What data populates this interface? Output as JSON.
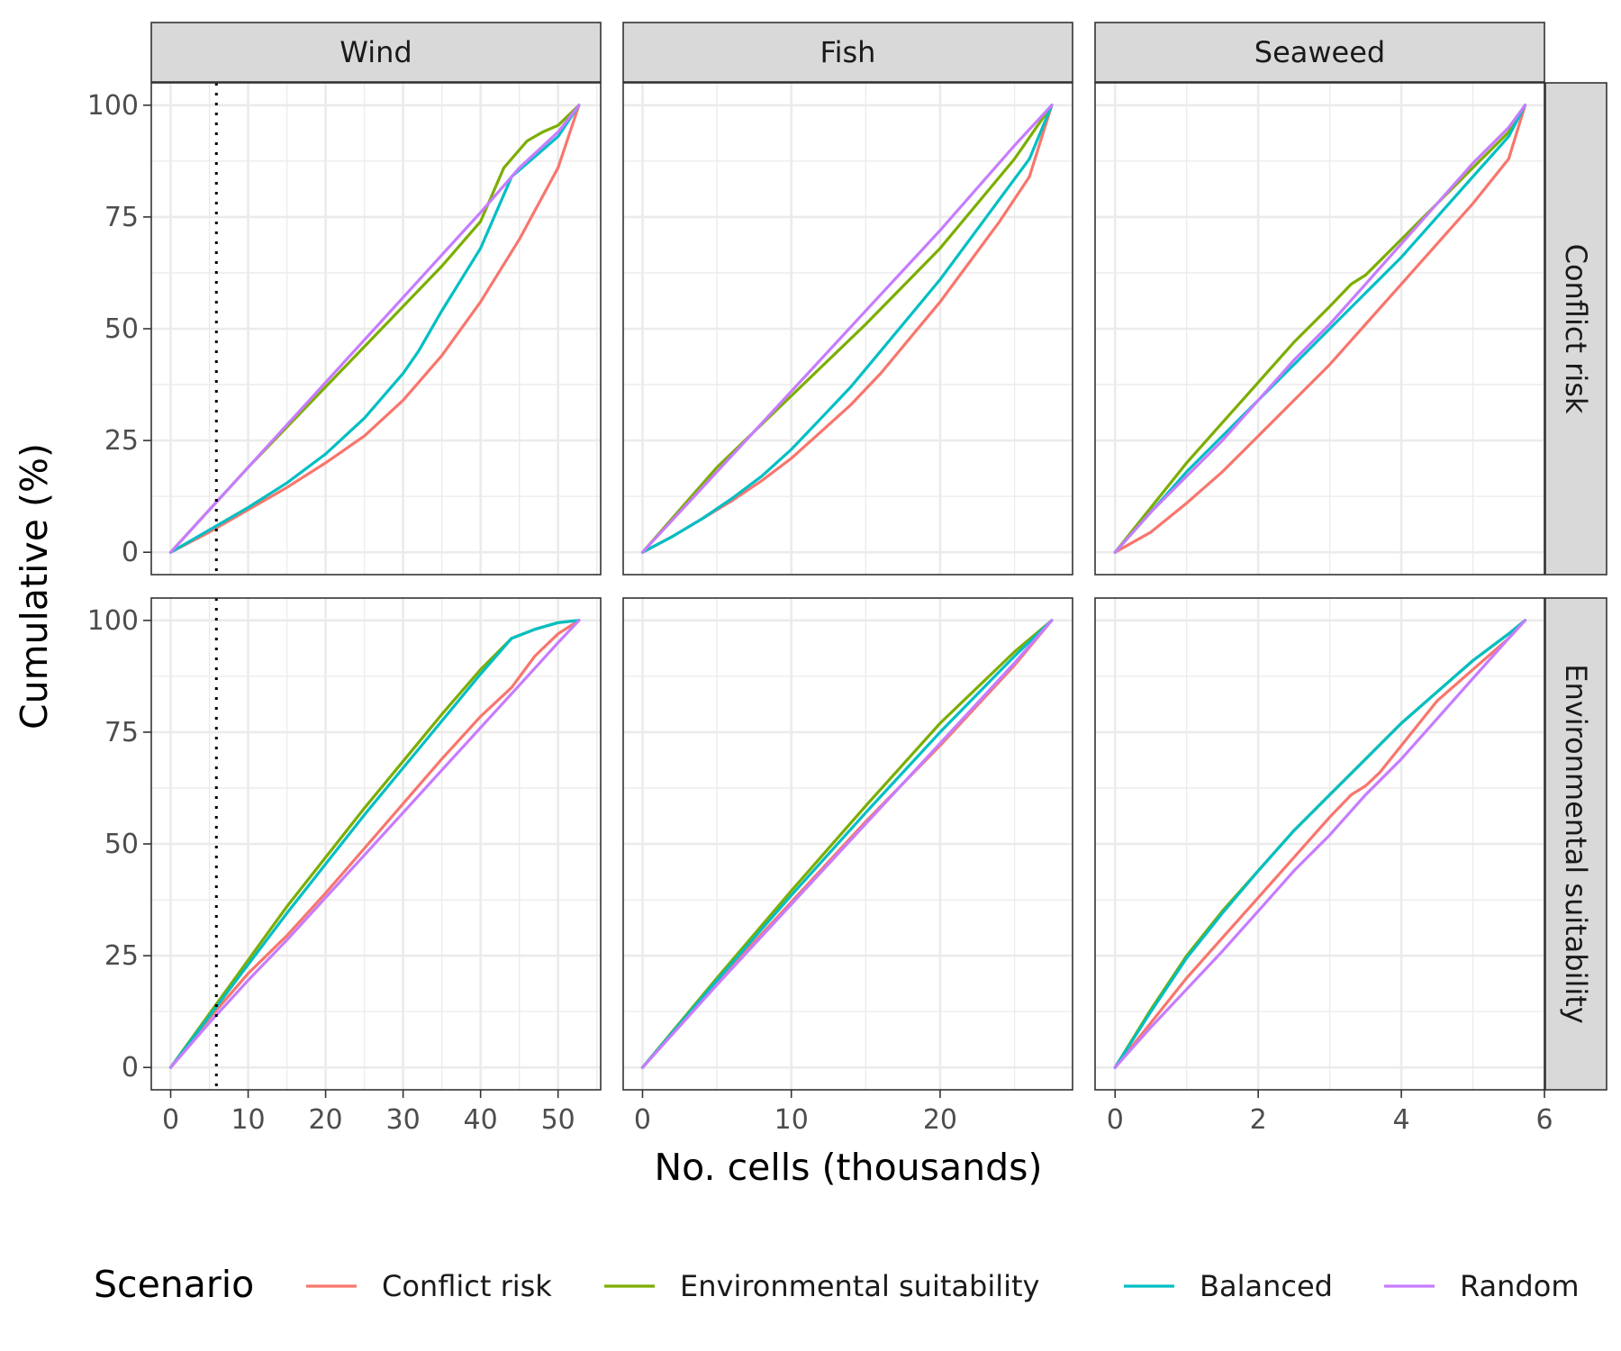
{
  "chart_data": {
    "type": "line",
    "xlabel": "No. cells (thousands)",
    "ylabel": "Cumulative (%)",
    "column_facets": [
      "Wind",
      "Fish",
      "Seaweed"
    ],
    "row_facets": [
      "Conflict risk",
      "Environmental suitability"
    ],
    "y_ticks": [
      "0",
      "25",
      "50",
      "75",
      "100"
    ],
    "ylim": [
      -5,
      105
    ],
    "x_axes": {
      "Wind": {
        "xlim": [
          -2.5,
          55.5
        ],
        "ticks": [
          0,
          10,
          20,
          30,
          40,
          50
        ],
        "max": 52.7
      },
      "Fish": {
        "xlim": [
          -1.3,
          28.9
        ],
        "ticks": [
          0,
          10,
          20
        ],
        "max": 27.5
      },
      "Seaweed": {
        "xlim": [
          -0.28,
          6.0
        ],
        "ticks": [
          0,
          2,
          4,
          6
        ],
        "max": 5.73
      }
    },
    "reference_line": {
      "panel_column": "Wind",
      "x": 5.9,
      "style": "dotted"
    },
    "legend": {
      "title": "Scenario",
      "position": "bottom",
      "entries": [
        {
          "name": "Conflict risk",
          "color": "#F8766D"
        },
        {
          "name": "Environmental suitability",
          "color": "#7CAE00"
        },
        {
          "name": "Balanced",
          "color": "#00BFC4"
        },
        {
          "name": "Random",
          "color": "#C77CFF"
        }
      ]
    },
    "panels": [
      {
        "row": "Conflict risk",
        "col": "Wind",
        "series": [
          {
            "name": "Conflict risk",
            "x": [
              0,
              5,
              10,
              15,
              20,
              25,
              30,
              35,
              40,
              45,
              50,
              52.7
            ],
            "y": [
              0,
              4.5,
              9.5,
              14.5,
              20,
              26,
              34,
              44,
              56,
              70,
              86,
              100
            ]
          },
          {
            "name": "Environmental suitability",
            "x": [
              0,
              5,
              10,
              15,
              20,
              25,
              30,
              35,
              40,
              43,
              46,
              48,
              50,
              52.7
            ],
            "y": [
              0,
              9.5,
              19,
              28,
              37,
              46,
              55,
              64,
              74,
              86,
              92,
              94,
              95.5,
              100
            ]
          },
          {
            "name": "Balanced",
            "x": [
              0,
              5,
              10,
              15,
              20,
              25,
              30,
              32,
              35,
              40,
              44,
              48,
              50,
              52.7
            ],
            "y": [
              0,
              5,
              10,
              15.5,
              22,
              30,
              40,
              45,
              54,
              68,
              84,
              90,
              93,
              100
            ]
          },
          {
            "name": "Random",
            "x": [
              0,
              5,
              10,
              15,
              20,
              25,
              30,
              35,
              40,
              45,
              50,
              52.7
            ],
            "y": [
              0,
              9.5,
              19,
              28.5,
              38,
              47.5,
              57,
              66.5,
              76,
              86,
              94,
              100
            ]
          }
        ]
      },
      {
        "row": "Conflict risk",
        "col": "Fish",
        "series": [
          {
            "name": "Conflict risk",
            "x": [
              0,
              2,
              4,
              6,
              8,
              10,
              12,
              14,
              16,
              18,
              20,
              22,
              24,
              26,
              27.5
            ],
            "y": [
              0,
              3.5,
              7.5,
              11.5,
              16,
              21,
              27,
              33,
              40,
              48,
              56,
              65,
              74,
              84,
              100
            ]
          },
          {
            "name": "Environmental suitability",
            "x": [
              0,
              5,
              10,
              15,
              20,
              25,
              27.5
            ],
            "y": [
              0,
              19,
              35,
              51,
              68,
              88,
              100
            ]
          },
          {
            "name": "Balanced",
            "x": [
              0,
              2,
              4,
              6,
              8,
              10,
              12,
              14,
              16,
              18,
              20,
              22,
              24,
              26,
              27.5
            ],
            "y": [
              0,
              3.5,
              7.5,
              12,
              17,
              23,
              30,
              37,
              45,
              53,
              61,
              70,
              79,
              88,
              100
            ]
          },
          {
            "name": "Random",
            "x": [
              0,
              5,
              10,
              15,
              20,
              25,
              27.5
            ],
            "y": [
              0,
              18,
              36,
              54,
              72,
              91,
              100
            ]
          }
        ]
      },
      {
        "row": "Conflict risk",
        "col": "Seaweed",
        "series": [
          {
            "name": "Conflict risk",
            "x": [
              0,
              0.5,
              1,
              1.5,
              2,
              2.5,
              3,
              3.5,
              4,
              4.5,
              5,
              5.5,
              5.73
            ],
            "y": [
              0,
              4.5,
              11,
              18,
              26,
              34,
              42,
              51,
              60,
              69,
              78,
              88,
              100
            ]
          },
          {
            "name": "Environmental suitability",
            "x": [
              0,
              0.5,
              1,
              1.5,
              2,
              2.5,
              3,
              3.3,
              3.5,
              4,
              4.5,
              5,
              5.5,
              5.73
            ],
            "y": [
              0,
              10,
              20,
              29,
              38,
              47,
              55,
              60,
              62,
              70,
              78,
              86,
              94,
              100
            ]
          },
          {
            "name": "Balanced",
            "x": [
              0,
              0.5,
              1,
              1.5,
              2,
              2.5,
              3,
              3.5,
              4,
              4.5,
              5,
              5.5,
              5.73
            ],
            "y": [
              0,
              9,
              18,
              26,
              34,
              42,
              50,
              58,
              66,
              75,
              84,
              93,
              100
            ]
          },
          {
            "name": "Random",
            "x": [
              0,
              0.5,
              1,
              1.5,
              2,
              2.5,
              3,
              3.5,
              4,
              4.5,
              5,
              5.5,
              5.73
            ],
            "y": [
              0,
              9,
              17,
              25,
              34,
              43,
              51,
              60,
              69,
              78,
              87,
              95,
              100
            ]
          }
        ]
      },
      {
        "row": "Environmental suitability",
        "col": "Wind",
        "series": [
          {
            "name": "Conflict risk",
            "x": [
              0,
              5,
              10,
              15,
              20,
              25,
              30,
              35,
              40,
              44,
              47,
              50,
              52.7
            ],
            "y": [
              0,
              11,
              21,
              29.5,
              39,
              49,
              59,
              69,
              78.5,
              85,
              92,
              97,
              100
            ]
          },
          {
            "name": "Environmental suitability",
            "x": [
              0,
              5,
              10,
              15,
              20,
              25,
              30,
              35,
              40,
              44,
              47,
              50,
              52.7
            ],
            "y": [
              0,
              12,
              24,
              36,
              47,
              58,
              68.5,
              79,
              89,
              96,
              98,
              99.5,
              100
            ]
          },
          {
            "name": "Balanced",
            "x": [
              0,
              5,
              10,
              15,
              20,
              25,
              30,
              35,
              40,
              44,
              47,
              50,
              52.7
            ],
            "y": [
              0,
              11.5,
              23,
              34.5,
              45.5,
              56.5,
              67,
              77.5,
              88,
              96,
              98,
              99.5,
              100
            ]
          },
          {
            "name": "Random",
            "x": [
              0,
              5,
              10,
              15,
              20,
              25,
              30,
              35,
              40,
              45,
              50,
              52.7
            ],
            "y": [
              0,
              10,
              19.5,
              28.5,
              38,
              47.5,
              57,
              66.5,
              76,
              85.5,
              95,
              100
            ]
          }
        ]
      },
      {
        "row": "Environmental suitability",
        "col": "Fish",
        "series": [
          {
            "name": "Conflict risk",
            "x": [
              0,
              5,
              10,
              15,
              20,
              25,
              27.5
            ],
            "y": [
              0,
              19,
              37,
              55,
              72,
              90,
              100
            ]
          },
          {
            "name": "Environmental suitability",
            "x": [
              0,
              5,
              10,
              15,
              20,
              25,
              27.5
            ],
            "y": [
              0,
              20,
              39.5,
              58.5,
              77,
              93,
              100
            ]
          },
          {
            "name": "Balanced",
            "x": [
              0,
              5,
              10,
              15,
              20,
              25,
              27.5
            ],
            "y": [
              0,
              19.5,
              38.5,
              57,
              75,
              92,
              100
            ]
          },
          {
            "name": "Random",
            "x": [
              0,
              5,
              10,
              15,
              20,
              25,
              27.5
            ],
            "y": [
              0,
              18.5,
              36.5,
              54.5,
              72.5,
              90.5,
              100
            ]
          }
        ]
      },
      {
        "row": "Environmental suitability",
        "col": "Seaweed",
        "series": [
          {
            "name": "Conflict risk",
            "x": [
              0,
              0.5,
              1,
              1.5,
              2,
              2.5,
              3,
              3.3,
              3.5,
              3.7,
              4,
              4.5,
              5,
              5.5,
              5.73
            ],
            "y": [
              0,
              10,
              20,
              29,
              38,
              47,
              56,
              61,
              63,
              66,
              72,
              82,
              89,
              96,
              100
            ]
          },
          {
            "name": "Environmental suitability",
            "x": [
              0,
              0.5,
              1,
              1.5,
              2,
              2.5,
              3,
              3.5,
              4,
              4.5,
              5,
              5.5,
              5.73
            ],
            "y": [
              0,
              13,
              25,
              35,
              44,
              53,
              61,
              69,
              77,
              84,
              91,
              97,
              100
            ]
          },
          {
            "name": "Balanced",
            "x": [
              0,
              0.5,
              1,
              1.5,
              2,
              2.5,
              3,
              3.5,
              4,
              4.5,
              5,
              5.5,
              5.73
            ],
            "y": [
              0,
              12.5,
              24.5,
              34.5,
              44,
              53,
              61,
              69,
              77,
              84,
              91,
              97,
              100
            ]
          },
          {
            "name": "Random",
            "x": [
              0,
              0.5,
              1,
              1.5,
              2,
              2.5,
              3,
              3.5,
              4,
              4.5,
              5,
              5.5,
              5.73
            ],
            "y": [
              0,
              9,
              17.5,
              26,
              35,
              44,
              52,
              61,
              69,
              78,
              87,
              96,
              100
            ]
          }
        ]
      }
    ]
  }
}
